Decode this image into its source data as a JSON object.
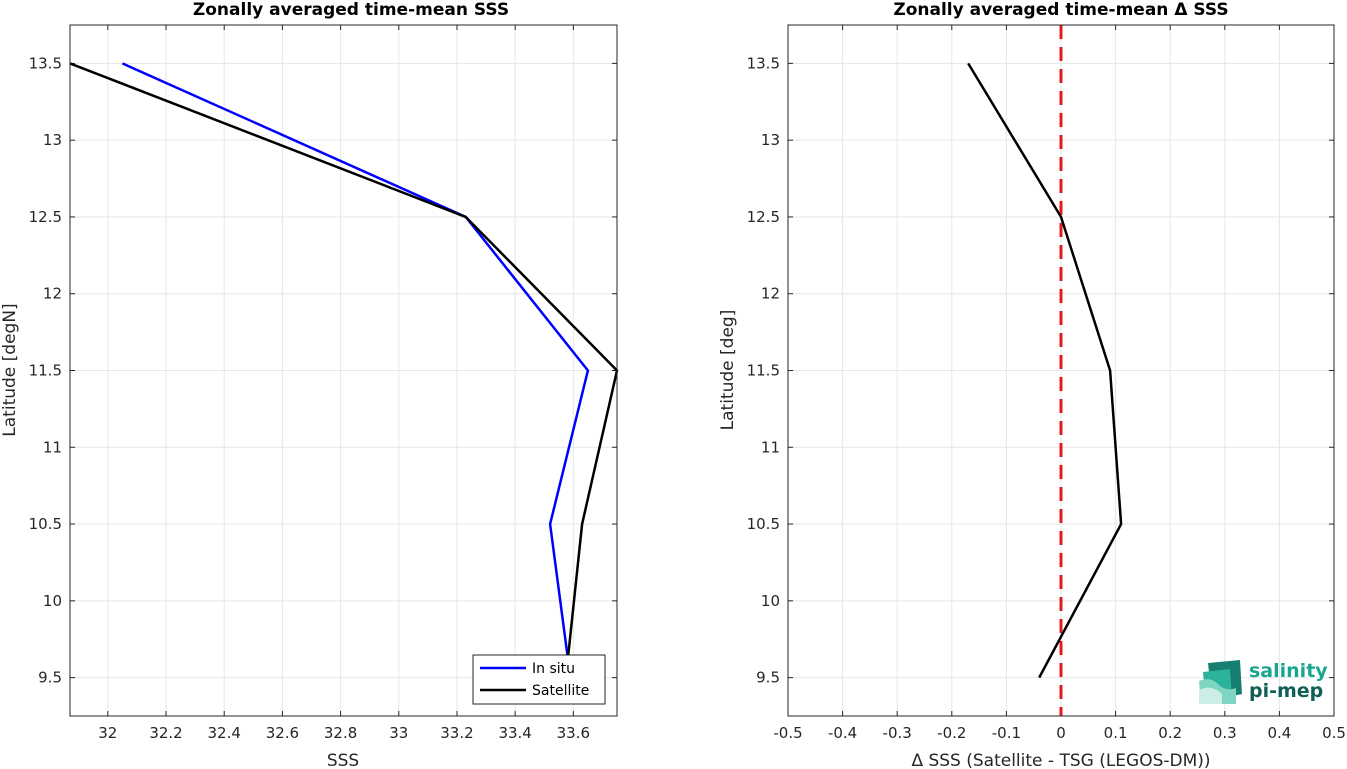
{
  "chart_data": [
    {
      "type": "line",
      "title": "Zonally averaged time-mean SSS",
      "xlabel": "SSS",
      "ylabel": "Latitude [degN]",
      "xlim": [
        31.87,
        33.75
      ],
      "ylim": [
        9.25,
        13.75
      ],
      "xticks": [
        32,
        32.2,
        32.4,
        32.6,
        32.8,
        33,
        33.2,
        33.4,
        33.6
      ],
      "xtick_labels": [
        "32",
        "32.2",
        "32.4",
        "32.6",
        "32.8",
        "33",
        "33.2",
        "33.4",
        "33.6"
      ],
      "yticks": [
        9.5,
        10,
        10.5,
        11,
        11.5,
        12,
        12.5,
        13,
        13.5
      ],
      "ytick_labels": [
        "9.5",
        "10",
        "10.5",
        "11",
        "11.5",
        "12",
        "12.5",
        "13",
        "13.5"
      ],
      "grid": true,
      "legend_position": "bottom-right",
      "series": [
        {
          "name": "In situ",
          "color": "#0000ff",
          "points": [
            [
              32.05,
              13.5
            ],
            [
              33.23,
              12.5
            ],
            [
              33.65,
              11.5
            ],
            [
              33.52,
              10.5
            ],
            [
              33.59,
              9.5
            ]
          ]
        },
        {
          "name": "Satellite",
          "color": "#000000",
          "points": [
            [
              31.87,
              13.5
            ],
            [
              33.23,
              12.5
            ],
            [
              33.75,
              11.5
            ],
            [
              33.63,
              10.5
            ],
            [
              33.58,
              9.6
            ]
          ]
        }
      ]
    },
    {
      "type": "line",
      "title": "Zonally averaged time-mean Δ SSS",
      "xlabel": "Δ SSS (Satellite - TSG (LEGOS-DM))",
      "ylabel": "Latitude [deg]",
      "xlim": [
        -0.5,
        0.5
      ],
      "ylim": [
        9.25,
        13.75
      ],
      "xticks": [
        -0.5,
        -0.4,
        -0.3,
        -0.2,
        -0.1,
        0,
        0.1,
        0.2,
        0.3,
        0.4,
        0.5
      ],
      "xtick_labels": [
        "-0.5",
        "-0.4",
        "-0.3",
        "-0.2",
        "-0.1",
        "0",
        "0.1",
        "0.2",
        "0.3",
        "0.4",
        "0.5"
      ],
      "yticks": [
        9.5,
        10,
        10.5,
        11,
        11.5,
        12,
        12.5,
        13,
        13.5
      ],
      "ytick_labels": [
        "9.5",
        "10",
        "10.5",
        "11",
        "11.5",
        "12",
        "12.5",
        "13",
        "13.5"
      ],
      "grid": true,
      "reference_line": {
        "x": 0,
        "color": "#e41a1c",
        "style": "dashed"
      },
      "series": [
        {
          "color": "#000000",
          "points": [
            [
              -0.17,
              13.5
            ],
            [
              0.0,
              12.5
            ],
            [
              0.09,
              11.5
            ],
            [
              0.11,
              10.5
            ],
            [
              -0.04,
              9.5
            ]
          ]
        }
      ]
    }
  ],
  "logo": {
    "line1": "salinity",
    "line2": "pi-mep"
  }
}
